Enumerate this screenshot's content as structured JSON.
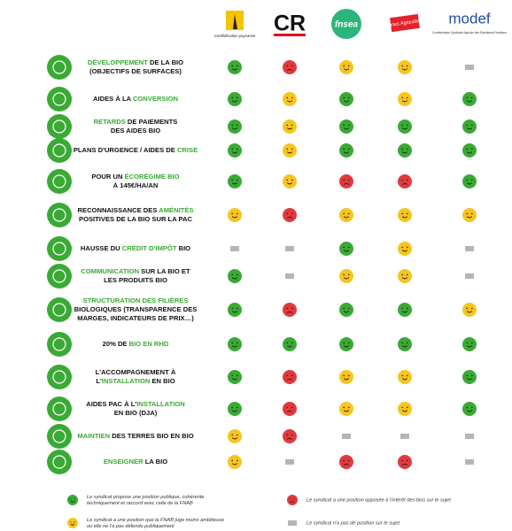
{
  "columns": [
    {
      "name": "Confédération paysanne",
      "style": "cp"
    },
    {
      "name": "CR",
      "style": "cr"
    },
    {
      "name": "fnsea",
      "style": "fnsea"
    },
    {
      "name": "Jeunes Agriculteurs",
      "style": "ja"
    },
    {
      "name": "modef",
      "subtitle": "Confédération Syndicale Agricole des Exploitants Familiaux",
      "style": "modef"
    }
  ],
  "rows": [
    {
      "label": [
        [
          {
            "text": "DÉVELOPPEMENT",
            "green": true
          },
          {
            "text": " DE LA BIO",
            "green": false
          }
        ],
        [
          {
            "text": "(OBJECTIFS DE SURFACES)",
            "green": false
          }
        ]
      ],
      "cells": [
        "green",
        "red",
        "yellow",
        "yellow",
        "none"
      ]
    },
    {
      "label": [
        [
          {
            "text": "AIDES À LA ",
            "green": false
          },
          {
            "text": "CONVERSION",
            "green": true
          }
        ]
      ],
      "cells": [
        "green",
        "yellow",
        "green",
        "yellow",
        "green"
      ]
    },
    {
      "label": [
        [
          {
            "text": "RETARDS",
            "green": true
          },
          {
            "text": " DE PAIEMENTS",
            "green": false
          }
        ],
        [
          {
            "text": "DES AIDES BIO",
            "green": false
          }
        ]
      ],
      "cells": [
        "green",
        "yellow",
        "green",
        "green",
        "green"
      ]
    },
    {
      "label": [
        [
          {
            "text": "PLANS D'URGENCE / AIDES DE ",
            "green": false
          },
          {
            "text": "CRISE",
            "green": true
          }
        ]
      ],
      "cells": [
        "green",
        "yellow",
        "green",
        "green",
        "green"
      ]
    },
    {
      "label": [
        [
          {
            "text": "POUR UN ",
            "green": false
          },
          {
            "text": "ÉCORÉGIME BIO",
            "green": true
          }
        ],
        [
          {
            "text": "À 145€/HA/AN",
            "green": false
          }
        ]
      ],
      "cells": [
        "green",
        "yellow",
        "red",
        "red",
        "green"
      ]
    },
    {
      "label": [
        [
          {
            "text": "RECONNAISSANCE DES ",
            "green": false
          },
          {
            "text": "AMÉNITÉS",
            "green": true
          }
        ],
        [
          {
            "text": "POSITIVES DE LA BIO SUR LA PAC",
            "green": false
          }
        ]
      ],
      "cells": [
        "yellow",
        "red",
        "yellow",
        "yellow",
        "yellow"
      ]
    },
    {
      "label": [
        [
          {
            "text": "HAUSSE DU ",
            "green": false
          },
          {
            "text": "CRÉDIT D'IMPÔT",
            "green": true
          },
          {
            "text": " BIO",
            "green": false
          }
        ]
      ],
      "cells": [
        "none",
        "none",
        "green",
        "yellow",
        "none"
      ]
    },
    {
      "label": [
        [
          {
            "text": "COMMUNICATION",
            "green": true
          },
          {
            "text": " SUR LA BIO ET",
            "green": false
          }
        ],
        [
          {
            "text": "LES PRODUITS BIO",
            "green": false
          }
        ]
      ],
      "cells": [
        "green",
        "none",
        "yellow",
        "yellow",
        "none"
      ]
    },
    {
      "label": [
        [
          {
            "text": "STRUCTURATION DES FILIÈRES",
            "green": true
          }
        ],
        [
          {
            "text": "BIOLOGIQUES (TRANSPARENCE DES",
            "green": false
          }
        ],
        [
          {
            "text": "MARGES, INDICATEURS DE PRIX…)",
            "green": false
          }
        ]
      ],
      "cells": [
        "green",
        "red",
        "green",
        "green",
        "yellow"
      ]
    },
    {
      "label": [
        [
          {
            "text": "20% DE ",
            "green": false
          },
          {
            "text": "BIO EN RHD",
            "green": true
          }
        ]
      ],
      "cells": [
        "green",
        "green",
        "green",
        "green",
        "green"
      ]
    },
    {
      "label": [
        [
          {
            "text": "L'ACCOMPAGNEMENT À",
            "green": false
          }
        ],
        [
          {
            "text": "L'",
            "green": false
          },
          {
            "text": "INSTALLATION",
            "green": true
          },
          {
            "text": " EN BIO",
            "green": false
          }
        ]
      ],
      "cells": [
        "green",
        "red",
        "yellow",
        "yellow",
        "green"
      ]
    },
    {
      "label": [
        [
          {
            "text": "AIDES PAC À L'",
            "green": false
          },
          {
            "text": "INSTALLATION",
            "green": true
          }
        ],
        [
          {
            "text": "EN BIO (DJA)",
            "green": false
          }
        ]
      ],
      "cells": [
        "green",
        "red",
        "yellow",
        "yellow",
        "green"
      ]
    },
    {
      "label": [
        [
          {
            "text": "MAINTIEN",
            "green": true
          },
          {
            "text": " DES TERRES BIO EN BIO",
            "green": false
          }
        ]
      ],
      "cells": [
        "yellow",
        "red",
        "none",
        "none",
        "none"
      ]
    },
    {
      "label": [
        [
          {
            "text": "ENSEIGNER",
            "green": true
          },
          {
            "text": " LA BIO",
            "green": false
          }
        ]
      ],
      "cells": [
        "yellow",
        "none",
        "red",
        "red",
        "none"
      ]
    }
  ],
  "legend": [
    {
      "status": "green",
      "lines": [
        "Le syndicat propose une position publique, cohérente",
        "techniquement et raccord avec celle de la FNAB"
      ]
    },
    {
      "status": "red",
      "lines": [
        "Le syndicat a une position opposée à l'intérêt des bios sur le sujet"
      ]
    },
    {
      "status": "yellow",
      "lines": [
        "Le syndicat a une position que la FNAB juge moins ambitieuse",
        "ou elle ne l'a pas défendu publiquement"
      ]
    },
    {
      "status": "none",
      "lines": [
        "Le syndicat n'a pas de position sur le sujet."
      ]
    }
  ]
}
